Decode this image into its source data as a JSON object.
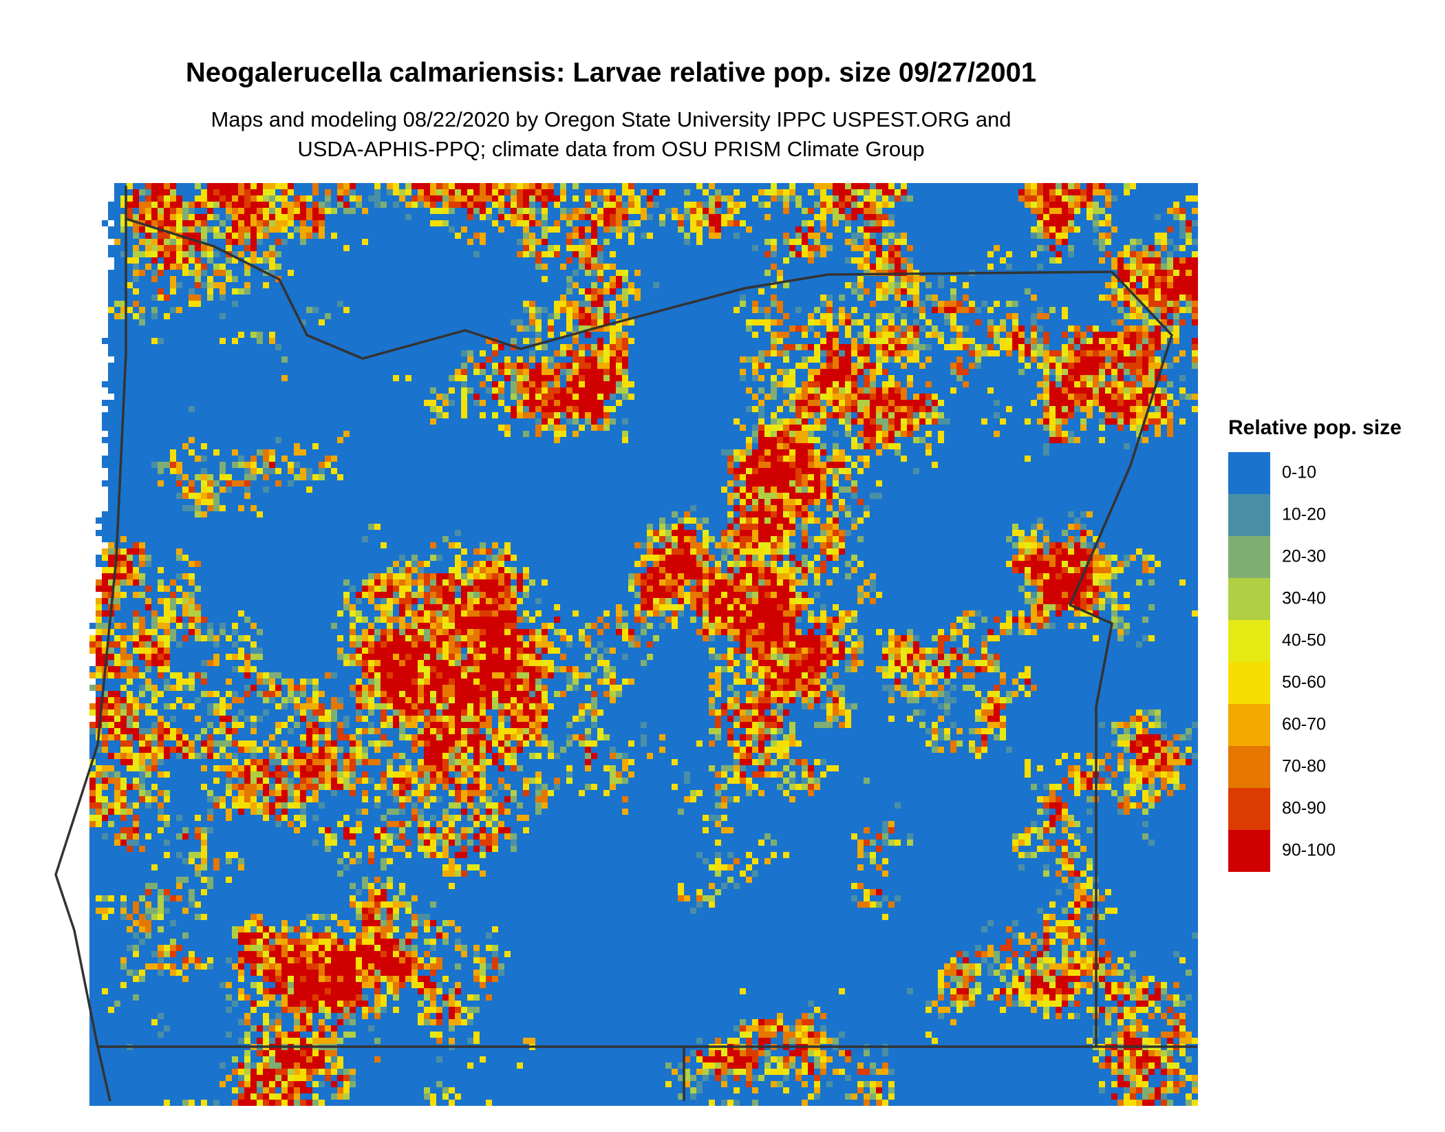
{
  "header": {
    "title": "Neogalerucella calmariensis: Larvae relative pop. size 09/27/2001",
    "subtitle_lines": [
      "Maps and modeling 08/22/2020 by Oregon State University IPPC USPEST.ORG and",
      "USDA-APHIS-PPQ; climate data from OSU PRISM Climate Group"
    ]
  },
  "legend": {
    "title": "Relative pop. size",
    "items": [
      {
        "label": "0-10",
        "color": "#1a73cc"
      },
      {
        "label": "10-20",
        "color": "#4a8fa6"
      },
      {
        "label": "20-30",
        "color": "#7fae72"
      },
      {
        "label": "30-40",
        "color": "#b0cf44"
      },
      {
        "label": "40-50",
        "color": "#e6ea14"
      },
      {
        "label": "50-60",
        "color": "#f6df00"
      },
      {
        "label": "60-70",
        "color": "#f2aa00"
      },
      {
        "label": "70-80",
        "color": "#e67700"
      },
      {
        "label": "80-90",
        "color": "#dc3c00"
      },
      {
        "label": "90-100",
        "color": "#d10000"
      }
    ]
  }
}
